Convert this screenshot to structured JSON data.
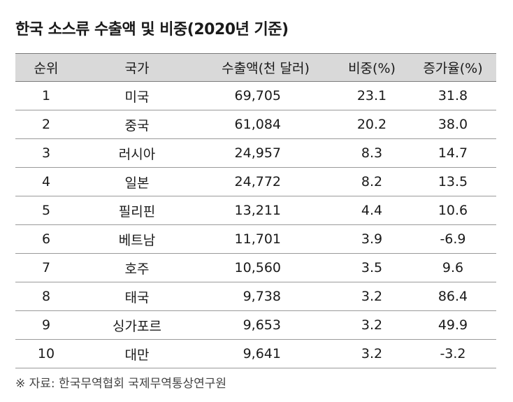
{
  "title": "한국 소스류 수출액 및 비중(2020년 기준)",
  "table": {
    "headers": {
      "rank": "순위",
      "country": "국가",
      "export": "수출액(천 달러)",
      "share": "비중(%)",
      "growth": "증가율(%)"
    },
    "rows": [
      {
        "rank": "1",
        "country": "미국",
        "export": "69,705",
        "share": "23.1",
        "growth": "31.8"
      },
      {
        "rank": "2",
        "country": "중국",
        "export": "61,084",
        "share": "20.2",
        "growth": "38.0"
      },
      {
        "rank": "3",
        "country": "러시아",
        "export": "24,957",
        "share": "8.3",
        "growth": "14.7"
      },
      {
        "rank": "4",
        "country": "일본",
        "export": "24,772",
        "share": "8.2",
        "growth": "13.5"
      },
      {
        "rank": "5",
        "country": "필리핀",
        "export": "13,211",
        "share": "4.4",
        "growth": "10.6"
      },
      {
        "rank": "6",
        "country": "베트남",
        "export": "11,701",
        "share": "3.9",
        "growth": "-6.9"
      },
      {
        "rank": "7",
        "country": "호주",
        "export": "10,560",
        "share": "3.5",
        "growth": "9.6"
      },
      {
        "rank": "8",
        "country": "태국",
        "export": "9,738",
        "share": "3.2",
        "growth": "86.4"
      },
      {
        "rank": "9",
        "country": "싱가포르",
        "export": "9,653",
        "share": "3.2",
        "growth": "49.9"
      },
      {
        "rank": "10",
        "country": "대만",
        "export": "9,641",
        "share": "3.2",
        "growth": "-3.2"
      }
    ]
  },
  "source": "※ 자료: 한국무역협회 국제무역통상연구원"
}
